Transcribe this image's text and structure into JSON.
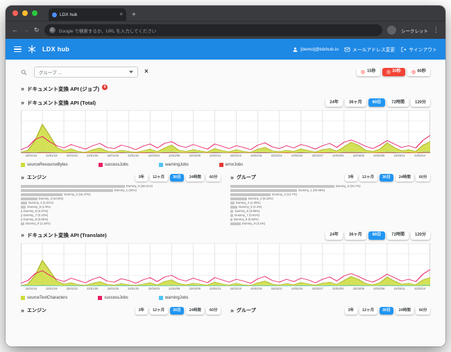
{
  "icons": {
    "close_tab": "×",
    "new_tab": "+",
    "back": "←",
    "forward": "→",
    "reload": "↻",
    "menu_dots": "⋮",
    "section_chevrons": "»",
    "clear": "×",
    "google": "G"
  },
  "browser": {
    "tab_title": "LDX hub",
    "url_placeholder": "Google で検索するか、URL を入力してください",
    "incognito_label": "シークレット"
  },
  "app_header": {
    "app_name": "LDX hub",
    "user_email": "[demo]@ldxhub.io",
    "change_email": "メールアドレス変更",
    "sign_out": "サインアウト"
  },
  "filter": {
    "group_select_value": "グループ ...",
    "refresh_intervals": [
      {
        "label": "15秒",
        "selected": false
      },
      {
        "label": "30秒",
        "selected": true
      },
      {
        "label": "60秒",
        "selected": false
      }
    ]
  },
  "sections": {
    "jobs": {
      "title": "ドキュメント変換 API (ジョブ)",
      "badge": "9"
    },
    "total": {
      "title": "ドキュメント変換 API (Total)"
    },
    "translate": {
      "title": "ドキュメント変換 API (Translate)"
    },
    "engine": {
      "title": "エンジン"
    },
    "group": {
      "title": "グループ"
    }
  },
  "range_buttons": {
    "options": [
      "24年",
      "36ヶ月",
      "60日",
      "72時間",
      "120分"
    ],
    "selected": "60日"
  },
  "mini_range_buttons": {
    "options": [
      "3年",
      "12ヶ月",
      "30日",
      "24時間",
      "60分"
    ],
    "selected": "30日"
  },
  "colors": {
    "header_blue": "#1e88e5",
    "selected_blue": "#2196f3",
    "selected_red": "#f44336",
    "bar_gray": "#c5c5c5"
  },
  "chart_data": [
    {
      "type": "line",
      "title": "ドキュメント変換 API (Total)",
      "grid": true,
      "legend_position": "bottom",
      "ylim": [
        0,
        150
      ],
      "x_labels": [
        "22/01/16",
        "22/01/19",
        "22/01/22",
        "22/01/25",
        "22/01/28",
        "22/01/31",
        "22/02/03",
        "22/02/06",
        "22/02/09",
        "22/02/12",
        "22/02/15",
        "22/02/18",
        "22/02/21",
        "22/02/24",
        "22/02/27",
        "22/03/02",
        "22/03/05",
        "22/03/08",
        "22/03/11",
        "22/03/14"
      ],
      "series": [
        {
          "name": "sourceResourceBytes",
          "color": "#cddc39",
          "stroke": "#afb42b",
          "fill": true,
          "values": [
            3,
            10,
            45,
            100,
            62,
            20,
            8,
            15,
            6,
            3,
            12,
            18,
            7,
            4,
            10,
            6,
            3,
            8,
            14,
            5,
            18,
            28,
            10,
            6,
            12,
            8,
            4,
            16,
            9,
            5,
            12,
            6,
            3,
            14,
            20,
            8,
            5,
            10,
            6,
            15,
            9,
            4,
            12,
            16,
            7,
            22,
            38,
            28,
            10,
            6,
            14,
            36,
            20,
            8,
            12,
            6,
            28,
            40
          ]
        },
        {
          "name": "successJobs",
          "color": "#e91e63",
          "values": [
            12,
            22,
            48,
            58,
            40,
            26,
            18,
            30,
            22,
            14,
            26,
            34,
            20,
            16,
            28,
            22,
            12,
            24,
            32,
            18,
            34,
            40,
            26,
            20,
            30,
            22,
            14,
            32,
            24,
            16,
            26,
            20,
            12,
            28,
            36,
            22,
            16,
            26,
            18,
            30,
            24,
            14,
            26,
            34,
            20,
            38,
            46,
            36,
            24,
            16,
            28,
            44,
            32,
            20,
            26,
            18,
            45,
            62
          ]
        },
        {
          "name": "warningJobs",
          "color": "#4fc3f7",
          "values": [
            1,
            2,
            1,
            3,
            2,
            1,
            0,
            2,
            1,
            0,
            1,
            2,
            1,
            0,
            2,
            1,
            0,
            1,
            2,
            0,
            2,
            3,
            1,
            0,
            2,
            1,
            0,
            2,
            1,
            0,
            1,
            1,
            0,
            2,
            2,
            1,
            0,
            1,
            0,
            2,
            1,
            0,
            1,
            2,
            0,
            2,
            3,
            2,
            1,
            0,
            1,
            3,
            2,
            1,
            1,
            0,
            3,
            4
          ]
        },
        {
          "name": "errorJobs",
          "color": "#e53935",
          "values": [
            0,
            1,
            0,
            2,
            1,
            0,
            0,
            1,
            0,
            0,
            1,
            1,
            0,
            0,
            1,
            0,
            0,
            1,
            1,
            0,
            1,
            2,
            0,
            0,
            1,
            0,
            0,
            1,
            0,
            0,
            1,
            0,
            0,
            1,
            1,
            0,
            0,
            1,
            0,
            1,
            0,
            0,
            1,
            1,
            0,
            1,
            2,
            1,
            0,
            0,
            1,
            2,
            1,
            0,
            1,
            0,
            2,
            2
          ]
        }
      ]
    },
    {
      "type": "bar",
      "orientation": "horizontal",
      "title": "エンジン",
      "unit": "%",
      "bar_color": "#c5c5c5",
      "categories": [
        "Dummy_0",
        "Dummy_1",
        "Dummy_2",
        "Dummy_3",
        "Dummy_4",
        "Dummy_5",
        "Dummy_6",
        "Dummy_7",
        "Dummy_8",
        "Dummy_9"
      ],
      "values": [
        38.41,
        34,
        15.47,
        6.03,
        2.31,
        1.9,
        0.37,
        0.13,
        0.05,
        1.24
      ]
    },
    {
      "type": "bar",
      "orientation": "horizontal",
      "title": "グループ",
      "unit": "%",
      "bar_color": "#c5c5c5",
      "categories": [
        "Dummy_0",
        "Dummy_1",
        "Dummy_2",
        "Dummy_3",
        "Dummy_4",
        "Dummy_5",
        "Dummy_6",
        "Dummy_7",
        "Dummy_8",
        "Dummy_9"
      ],
      "values": [
        32.7,
        20.98,
        12.7,
        5.22,
        1.25,
        2.2,
        0.98,
        0.91,
        0.62,
        3.2
      ]
    },
    {
      "type": "line",
      "title": "ドキュメント変換 API (Translate)",
      "grid": true,
      "legend_position": "bottom",
      "ylim": [
        0,
        150
      ],
      "x_labels": [
        "22/01/16",
        "22/01/19",
        "22/01/22",
        "22/01/25",
        "22/01/28",
        "22/01/31",
        "22/02/03",
        "22/02/06",
        "22/02/09",
        "22/02/12",
        "22/02/15",
        "22/02/18",
        "22/02/21",
        "22/02/24",
        "22/02/27",
        "22/03/02",
        "22/03/05",
        "22/03/08",
        "22/03/11",
        "22/03/14"
      ],
      "series": [
        {
          "name": "sourceTextCharacters",
          "color": "#cddc39",
          "stroke": "#afb42b",
          "fill": true,
          "values": [
            2,
            8,
            38,
            90,
            55,
            18,
            7,
            12,
            5,
            3,
            10,
            16,
            6,
            4,
            9,
            5,
            3,
            7,
            12,
            4,
            16,
            22,
            9,
            5,
            10,
            7,
            4,
            14,
            8,
            4,
            10,
            5,
            3,
            12,
            18,
            7,
            4,
            9,
            5,
            13,
            8,
            4,
            10,
            14,
            6,
            20,
            34,
            24,
            9,
            5,
            12,
            32,
            18,
            7,
            10,
            5,
            22,
            30
          ]
        },
        {
          "name": "successJobs",
          "color": "#e91e63",
          "values": [
            10,
            20,
            44,
            54,
            38,
            24,
            16,
            28,
            20,
            12,
            24,
            32,
            18,
            14,
            26,
            20,
            10,
            22,
            30,
            16,
            32,
            38,
            24,
            18,
            28,
            20,
            12,
            30,
            22,
            14,
            24,
            18,
            10,
            26,
            34,
            20,
            14,
            24,
            16,
            28,
            22,
            12,
            24,
            32,
            18,
            36,
            44,
            34,
            22,
            14,
            26,
            42,
            30,
            18,
            24,
            16,
            42,
            58
          ]
        },
        {
          "name": "warningJobs",
          "color": "#4fc3f7",
          "values": [
            1,
            2,
            1,
            3,
            2,
            1,
            0,
            2,
            1,
            0,
            1,
            2,
            1,
            0,
            2,
            1,
            0,
            1,
            2,
            0,
            2,
            3,
            1,
            0,
            2,
            1,
            0,
            2,
            1,
            0,
            1,
            1,
            0,
            2,
            2,
            1,
            0,
            1,
            0,
            2,
            1,
            0,
            1,
            2,
            0,
            2,
            3,
            2,
            1,
            0,
            1,
            3,
            2,
            1,
            1,
            0,
            3,
            4
          ]
        }
      ]
    }
  ]
}
